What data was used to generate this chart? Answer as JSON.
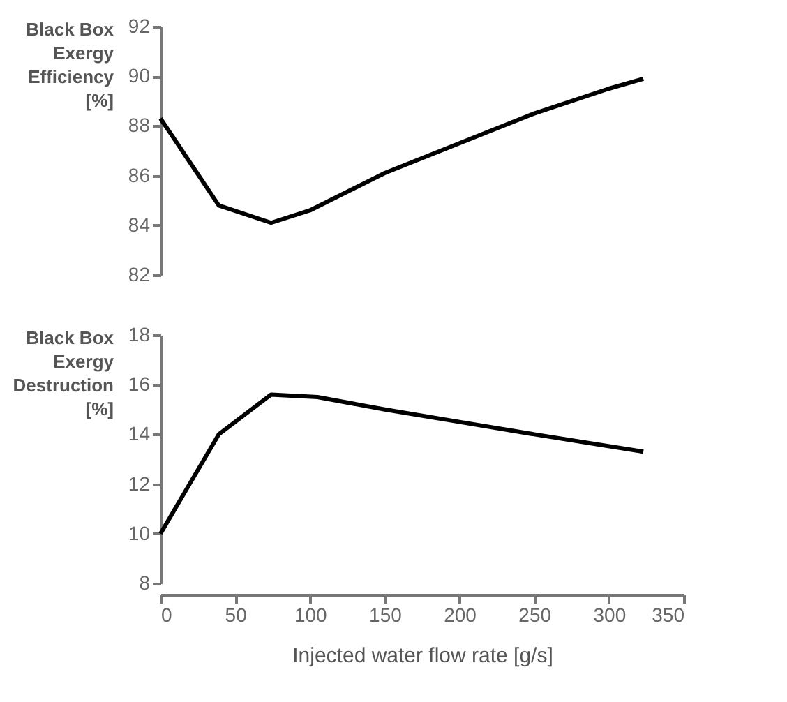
{
  "chart_data": [
    {
      "type": "line",
      "ylabel": "Black Box\nExergy\nEfficiency\n[%]",
      "xlim": [
        0,
        350
      ],
      "xticks": [
        0,
        50,
        100,
        150,
        200,
        250,
        300,
        350
      ],
      "ylim": [
        82,
        92
      ],
      "yticks": [
        82,
        84,
        86,
        88,
        90,
        92
      ],
      "tick_labels": "y",
      "series": [
        {
          "color": "#000000",
          "x": [
            0,
            39,
            74,
            100,
            150,
            200,
            250,
            300,
            323
          ],
          "values": [
            88.3,
            84.8,
            84.1,
            84.6,
            86.1,
            87.3,
            88.5,
            89.5,
            89.9
          ]
        }
      ]
    },
    {
      "type": "line",
      "ylabel": "Black Box\nExergy\nDestruction\n[%]",
      "xlabel": "Injected water flow rate [g/s]",
      "xlim": [
        0,
        350
      ],
      "xticks": [
        0,
        50,
        100,
        150,
        200,
        250,
        300,
        350
      ],
      "ylim": [
        8,
        18
      ],
      "yticks": [
        8,
        10,
        12,
        14,
        16,
        18
      ],
      "series": [
        {
          "color": "#000000",
          "x": [
            0,
            39,
            74,
            105,
            150,
            200,
            250,
            323
          ],
          "values": [
            10.0,
            14.0,
            15.6,
            15.5,
            15.0,
            14.5,
            14.0,
            13.3
          ]
        }
      ]
    }
  ]
}
